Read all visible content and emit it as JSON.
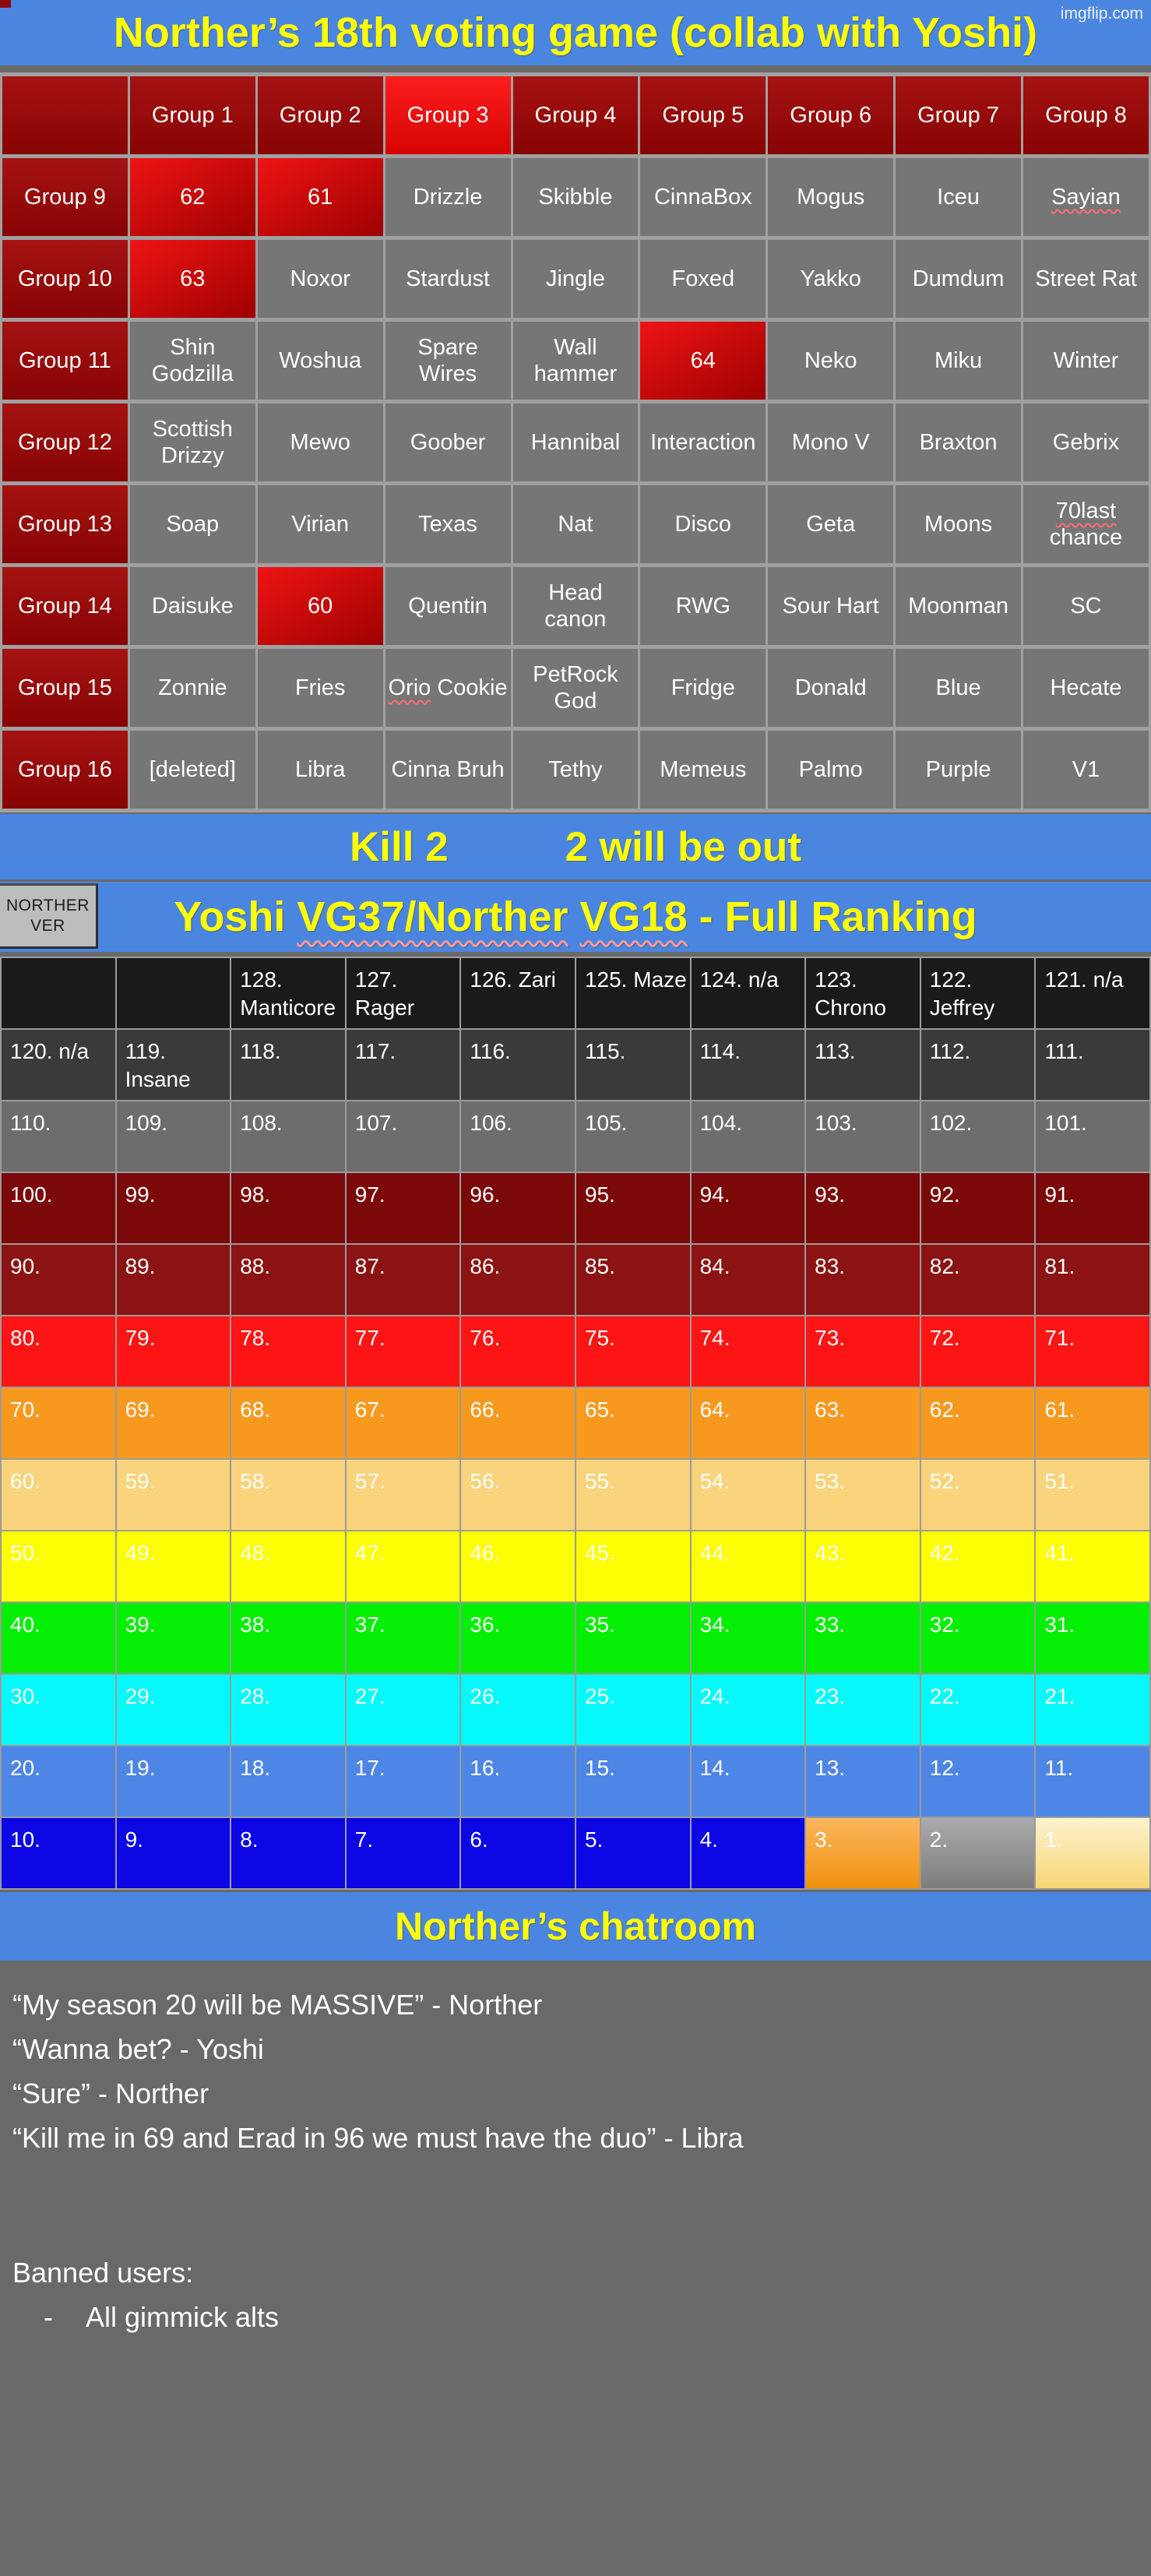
{
  "header": {
    "title": "Norther’s 18th voting game (collab with Yoshi)",
    "watermark": "imgflip.com"
  },
  "colors": {
    "banner_blue": "#4a86e0",
    "banner_yellow": "#fdfd08",
    "dark_red": "#9a0d0d",
    "bright_red": "#ee1414",
    "cell_gray": "#767676",
    "tier_black": "#1a1a1a",
    "tier_dark": "#3a3a3a",
    "tier_gray": "#6d6d6d",
    "tier_maroon": "#7c0909",
    "tier_maroon2": "#8c1313",
    "tier_red": "#fd1515",
    "tier_orange": "#f8991f",
    "tier_tan": "#f9d47c",
    "tier_yellow": "#fdfd04",
    "tier_green": "#04ef04",
    "tier_cyan": "#04fafa",
    "tier_blue": "#4e86e6",
    "tier_navy": "#0b06e3"
  },
  "groups_table": {
    "header": [
      {
        "t": ""
      },
      {
        "t": "Group 1"
      },
      {
        "t": "Group 2"
      },
      {
        "t": "Group 3",
        "hot": true
      },
      {
        "t": "Group 4"
      },
      {
        "t": "Group 5"
      },
      {
        "t": "Group 6"
      },
      {
        "t": "Group 7"
      },
      {
        "t": "Group 8"
      }
    ],
    "rows": [
      {
        "label": "Group 9",
        "cells": [
          {
            "t": "62",
            "out": true
          },
          {
            "t": "61",
            "out": true
          },
          {
            "t": "Drizzle"
          },
          {
            "t": "Skibble"
          },
          {
            "t": "CinnaBox"
          },
          {
            "t": "Mogus"
          },
          {
            "t": "Iceu"
          },
          {
            "t": "Sayian",
            "w": "Sayian"
          }
        ]
      },
      {
        "label": "Group 10",
        "cells": [
          {
            "t": "63",
            "out": true
          },
          {
            "t": "Noxor"
          },
          {
            "t": "Stardust"
          },
          {
            "t": "Jingle"
          },
          {
            "t": "Foxed"
          },
          {
            "t": "Yakko"
          },
          {
            "t": "Dumdum"
          },
          {
            "t": "Street Rat"
          }
        ]
      },
      {
        "label": "Group 11",
        "cells": [
          {
            "t": "Shin Godzilla"
          },
          {
            "t": "Woshua"
          },
          {
            "t": "Spare Wires"
          },
          {
            "t": "Wall hammer"
          },
          {
            "t": "64",
            "out": true
          },
          {
            "t": "Neko"
          },
          {
            "t": "Miku"
          },
          {
            "t": "Winter"
          }
        ]
      },
      {
        "label": "Group 12",
        "cells": [
          {
            "t": "Scottish Drizzy"
          },
          {
            "t": "Mewo"
          },
          {
            "t": "Goober"
          },
          {
            "t": "Hannibal"
          },
          {
            "t": "Interaction"
          },
          {
            "t": "Mono V"
          },
          {
            "t": "Braxton"
          },
          {
            "t": "Gebrix"
          }
        ]
      },
      {
        "label": "Group 13",
        "cells": [
          {
            "t": "Soap"
          },
          {
            "t": "Virian"
          },
          {
            "t": "Texas"
          },
          {
            "t": "Nat"
          },
          {
            "t": "Disco"
          },
          {
            "t": "Geta"
          },
          {
            "t": "Moons"
          },
          {
            "t": "70last chance",
            "w": "70last"
          }
        ]
      },
      {
        "label": "Group 14",
        "cells": [
          {
            "t": "Daisuke"
          },
          {
            "t": "60",
            "out": true
          },
          {
            "t": "Quentin"
          },
          {
            "t": "Head canon"
          },
          {
            "t": "RWG"
          },
          {
            "t": "Sour Hart"
          },
          {
            "t": "Moonman"
          },
          {
            "t": "SC"
          }
        ]
      },
      {
        "label": "Group 15",
        "cells": [
          {
            "t": "Zonnie"
          },
          {
            "t": "Fries"
          },
          {
            "t": "Orio Cookie",
            "w": "Orio"
          },
          {
            "t": "PetRock God"
          },
          {
            "t": "Fridge"
          },
          {
            "t": "Donald"
          },
          {
            "t": "Blue"
          },
          {
            "t": "Hecate"
          }
        ]
      },
      {
        "label": "Group 16",
        "cells": [
          {
            "t": "[deleted]"
          },
          {
            "t": "Libra"
          },
          {
            "t": "Cinna Bruh"
          },
          {
            "t": "Tethy"
          },
          {
            "t": "Memeus"
          },
          {
            "t": "Palmo"
          },
          {
            "t": "Purple"
          },
          {
            "t": "V1"
          }
        ]
      }
    ]
  },
  "kill_banner": {
    "left": "Kill 2",
    "right": "2 will be out"
  },
  "ranking_banner": {
    "button_line1": "NORTHER",
    "button_line2": "VER",
    "title_part1": "Yoshi ",
    "title_wavy1": "VG37/Norther",
    "title_space": " ",
    "title_wavy2": "VG18",
    "title_part2": " - Full Ranking"
  },
  "ranking_table": {
    "rows": [
      {
        "tier": "black",
        "cells": [
          "",
          "",
          "128. Manticore",
          "127. Rager",
          "126. Zari",
          "125. Maze",
          "124. n/a",
          "123. Chrono",
          "122. Jeffrey",
          "121. n/a"
        ]
      },
      {
        "tier": "dark",
        "cells": [
          "120. n/a",
          "119. Insane",
          "118.",
          "117.",
          "116.",
          "115.",
          "114.",
          "113.",
          "112.",
          "111."
        ]
      },
      {
        "tier": "gray",
        "cells": [
          "110.",
          "109.",
          "108.",
          "107.",
          "106.",
          "105.",
          "104.",
          "103.",
          "102.",
          "101."
        ]
      },
      {
        "tier": "maroon",
        "cells": [
          "100.",
          "99.",
          "98.",
          "97.",
          "96.",
          "95.",
          "94.",
          "93.",
          "92.",
          "91."
        ]
      },
      {
        "tier": "maroon2",
        "cells": [
          "90.",
          "89.",
          "88.",
          "87.",
          "86.",
          "85.",
          "84.",
          "83.",
          "82.",
          "81."
        ]
      },
      {
        "tier": "red",
        "cells": [
          "80.",
          "79.",
          "78.",
          "77.",
          "76.",
          "75.",
          "74.",
          "73.",
          "72.",
          "71."
        ]
      },
      {
        "tier": "orange",
        "cells": [
          "70.",
          "69.",
          "68.",
          "67.",
          "66.",
          "65.",
          "64.",
          "63.",
          "62.",
          "61."
        ]
      },
      {
        "tier": "tan",
        "cells": [
          "60.",
          "59.",
          "58.",
          "57.",
          "56.",
          "55.",
          "54.",
          "53.",
          "52.",
          "51."
        ]
      },
      {
        "tier": "yellow",
        "cells": [
          "50.",
          "49.",
          "48.",
          "47.",
          "46.",
          "45.",
          "44.",
          "43.",
          "42.",
          "41."
        ]
      },
      {
        "tier": "green",
        "cells": [
          "40.",
          "39.",
          "38.",
          "37.",
          "36.",
          "35.",
          "34.",
          "33.",
          "32.",
          "31."
        ]
      },
      {
        "tier": "cyan",
        "cells": [
          "30.",
          "29.",
          "28.",
          "27.",
          "26.",
          "25.",
          "24.",
          "23.",
          "22.",
          "21."
        ]
      },
      {
        "tier": "blue",
        "cells": [
          "20.",
          "19.",
          "18.",
          "17.",
          "16.",
          "15.",
          "14.",
          "13.",
          "12.",
          "11."
        ]
      },
      {
        "tier": "navy",
        "cells": [
          "10.",
          "9.",
          "8.",
          "7.",
          "6.",
          "5.",
          "4.",
          "3.",
          "2.",
          "1."
        ],
        "overrides": {
          "7": "bronze",
          "8": "silver",
          "9": "gold"
        }
      }
    ]
  },
  "chatroom": {
    "title": "Norther’s chatroom",
    "quotes": [
      "“My season 20 will be MASSIVE” - Norther",
      "“Wanna bet? - Yoshi",
      "“Sure” - Norther",
      "“Kill me in 69 and Erad in 96 we must have the duo” - Libra"
    ],
    "banned_heading": "Banned users:",
    "banned_bullet": "-",
    "banned_item": "All gimmick alts"
  }
}
